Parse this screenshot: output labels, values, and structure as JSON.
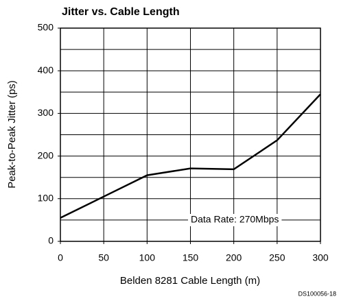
{
  "chart_data": {
    "type": "line",
    "title": "Jitter vs. Cable Length",
    "x_label": "Belden 8281 Cable Length (m)",
    "y_label": "Peak-to-Peak Jitter (ps)",
    "x": [
      0,
      50,
      100,
      150,
      200,
      250,
      300
    ],
    "series": [
      {
        "name": "Data Rate: 270Mbps",
        "color": "#000000",
        "values": [
          55,
          105,
          155,
          171,
          169,
          237,
          345
        ]
      }
    ],
    "xlim": [
      0,
      300
    ],
    "xticks": [
      0,
      50,
      100,
      150,
      200,
      250,
      300
    ],
    "ylim": [
      0,
      500
    ],
    "yticks": [
      0,
      100,
      200,
      300,
      400,
      500
    ],
    "yminor": [
      50,
      150,
      250,
      350,
      450
    ],
    "grid": true,
    "footnote": "DS100056-18"
  }
}
